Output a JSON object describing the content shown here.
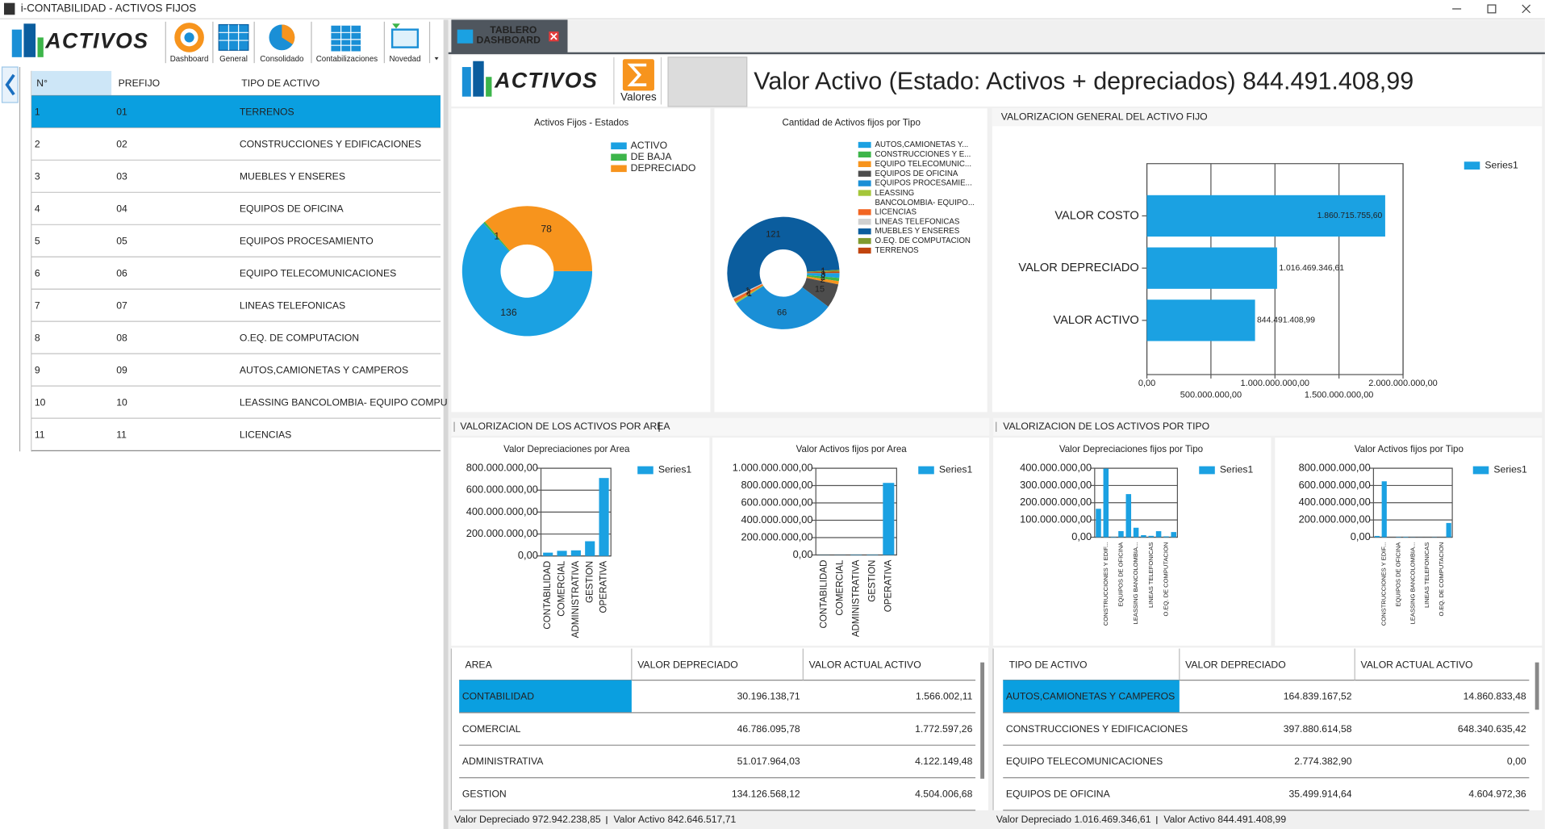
{
  "window": {
    "title": "i-CONTABILIDAD - ACTIVOS FIJOS"
  },
  "toolbar": {
    "logo": "ACTIVOS",
    "buttons": [
      "Dashboard",
      "General",
      "Consolidado",
      "Contabilizaciones",
      "Novedad"
    ]
  },
  "left_table": {
    "columns": [
      "N°",
      "PREFIJO",
      "TIPO DE ACTIVO"
    ],
    "rows": [
      [
        "1",
        "01",
        "TERRENOS"
      ],
      [
        "2",
        "02",
        "CONSTRUCCIONES Y EDIFICACIONES"
      ],
      [
        "3",
        "03",
        "MUEBLES Y ENSERES"
      ],
      [
        "4",
        "04",
        "EQUIPOS DE OFICINA"
      ],
      [
        "5",
        "05",
        "EQUIPOS PROCESAMIENTO"
      ],
      [
        "6",
        "06",
        "EQUIPO TELECOMUNICACIONES"
      ],
      [
        "7",
        "07",
        "LINEAS TELEFONICAS"
      ],
      [
        "8",
        "08",
        "O.EQ. DE COMPUTACION"
      ],
      [
        "9",
        "09",
        "AUTOS,CAMIONETAS Y CAMPEROS"
      ],
      [
        "10",
        "10",
        "LEASSING BANCOLOMBIA- EQUIPO COMPU"
      ],
      [
        "11",
        "11",
        "LICENCIAS"
      ]
    ]
  },
  "tab": {
    "label": [
      "TABLERO",
      "DASHBOARD"
    ]
  },
  "header": {
    "logo": "ACTIVOS",
    "button": "Valores",
    "title": "Valor Activo (Estado: Activos + depreciados) 844.491.408,99"
  },
  "sections": [
    "VALORIZACION DE LOS ACTIVOS POR AREA",
    "VALORIZACION DE LOS ACTIVOS POR TIPO"
  ],
  "chart_data": [
    {
      "type": "donut",
      "title": "Activos Fijos - Estados",
      "categories": [
        "ACTIVO",
        "DE BAJA",
        "DEPRECIADO"
      ],
      "values": [
        136,
        1,
        78
      ],
      "colors": [
        "#1ba1e2",
        "#3db54a",
        "#f7941d"
      ],
      "legend": "right"
    },
    {
      "type": "donut",
      "title": "Cantidad de Activos fijos por Tipo",
      "categories": [
        "AUTOS,CAMIONETAS Y...",
        "CONSTRUCCIONES Y E...",
        "EQUIPO TELECOMUNIC...",
        "EQUIPOS DE OFICINA",
        "EQUIPOS PROCESAMIE...",
        "LEASSING BANCOLOMBIA- EQUIPO...",
        "LICENCIAS",
        "LINEAS TELEFONICAS",
        "MUEBLES Y ENSERES",
        "O.EQ. DE COMPUTACION",
        "TERRENOS"
      ],
      "values": [
        3,
        2,
        2,
        15,
        66,
        1,
        2,
        1,
        121,
        1,
        1
      ],
      "colors": [
        "#1ba1e2",
        "#3db54a",
        "#f7941d",
        "#4d4d4d",
        "#1a8fd6",
        "#a4c639",
        "#f26522",
        "#d0d0d0",
        "#0b5d9e",
        "#7f9a2e",
        "#c1440e"
      ],
      "legend": "right"
    },
    {
      "type": "barh",
      "title": "VALORIZACION GENERAL DEL ACTIVO FIJO",
      "categories": [
        "VALOR COSTO",
        "VALOR DEPRECIADO",
        "VALOR ACTIVO"
      ],
      "series": [
        {
          "name": "Series1",
          "color": "#1ba1e2",
          "values": [
            1860715755.6,
            1016469346.61,
            844491408.99
          ],
          "value_labels": [
            "1.860.715.755,60",
            "1.016.469.346,61",
            "844.491.408,99"
          ]
        }
      ],
      "xlim": [
        0,
        2000000000
      ],
      "xticks": [
        {
          "value": 0,
          "label": "0,00"
        },
        {
          "value": 500000000,
          "label": "500.000.000,00"
        },
        {
          "value": 1000000000,
          "label": "1.000.000.000,00"
        },
        {
          "value": 1500000000,
          "label": "1.500.000.000,00"
        },
        {
          "value": 2000000000,
          "label": "2.000.000.000,00"
        }
      ],
      "grid": true
    },
    {
      "type": "bar",
      "title": "Valor Depreciaciones por Area",
      "categories": [
        "CONTABILIDAD",
        "COMERCIAL",
        "ADMINISTRATIVA",
        "GESTION",
        "OPERATIVA"
      ],
      "series": [
        {
          "name": "Series1",
          "color": "#1ba1e2",
          "values": [
            30196138.71,
            46786095.78,
            51017964.03,
            134126568.12,
            710815472.21
          ]
        }
      ],
      "ylim": [
        0,
        800000000
      ],
      "yticks": [
        {
          "value": 0,
          "label": "0,00"
        },
        {
          "value": 200000000,
          "label": "200.000.000,00"
        },
        {
          "value": 400000000,
          "label": "400.000.000,00"
        },
        {
          "value": 600000000,
          "label": "600.000.000,00"
        },
        {
          "value": 800000000,
          "label": "800.000.000,00"
        }
      ],
      "grid": true
    },
    {
      "type": "bar",
      "title": "Valor Activos fijos por Area",
      "categories": [
        "CONTABILIDAD",
        "COMERCIAL",
        "ADMINISTRATIVA",
        "GESTION",
        "OPERATIVA"
      ],
      "series": [
        {
          "name": "Series1",
          "color": "#1ba1e2",
          "values": [
            1566002.11,
            1772597.26,
            4122149.48,
            4504006.68,
            830681762.18
          ]
        }
      ],
      "ylim": [
        0,
        1000000000
      ],
      "yticks": [
        {
          "value": 0,
          "label": "0,00"
        },
        {
          "value": 200000000,
          "label": "200.000.000,00"
        },
        {
          "value": 400000000,
          "label": "400.000.000,00"
        },
        {
          "value": 600000000,
          "label": "600.000.000,00"
        },
        {
          "value": 800000000,
          "label": "800.000.000,00"
        },
        {
          "value": 1000000000,
          "label": "1.000.000.000,00"
        }
      ],
      "grid": true
    },
    {
      "type": "bar",
      "title": "Valor Depreciaciones fijos por Tipo",
      "categories": [
        null,
        "CONSTRUCCIONES Y EDIF...",
        null,
        "EQUIPOS DE OFICINA",
        null,
        "LEASSING BANCOLOMBIA...",
        null,
        "LINEAS TELEFONICAS",
        null,
        "O.EQ. DE COMPUTACION",
        null
      ],
      "series": [
        {
          "name": "Series1",
          "color": "#1ba1e2",
          "values": [
            164839167.52,
            397880614.58,
            2774382.9,
            35499914.64,
            250000000,
            55000000,
            12000000,
            8000000,
            35000000,
            5000000,
            30000000
          ]
        }
      ],
      "ylim": [
        0,
        400000000
      ],
      "yticks": [
        {
          "value": 0,
          "label": "0,00"
        },
        {
          "value": 100000000,
          "label": "100.000.000,00"
        },
        {
          "value": 200000000,
          "label": "200.000.000,00"
        },
        {
          "value": 300000000,
          "label": "300.000.000,00"
        },
        {
          "value": 400000000,
          "label": "400.000.000,00"
        }
      ],
      "grid": true
    },
    {
      "type": "bar",
      "title": "Valor Activos fijos por Tipo",
      "categories": [
        null,
        "CONSTRUCCIONES Y EDIF...",
        null,
        "EQUIPOS DE OFICINA",
        null,
        "LEASSING BANCOLOMBIA...",
        null,
        "LINEAS TELEFONICAS",
        null,
        "O.EQ. DE COMPUTACION",
        null
      ],
      "series": [
        {
          "name": "Series1",
          "color": "#1ba1e2",
          "values": [
            14860833.48,
            648340635.42,
            0,
            4604972.36,
            5000000,
            2000000,
            1000000,
            500000,
            2500000,
            700000,
            165000000
          ]
        }
      ],
      "ylim": [
        0,
        800000000
      ],
      "yticks": [
        {
          "value": 0,
          "label": "0,00"
        },
        {
          "value": 200000000,
          "label": "200.000.000,00"
        },
        {
          "value": 400000000,
          "label": "400.000.000,00"
        },
        {
          "value": 600000000,
          "label": "600.000.000,00"
        },
        {
          "value": 800000000,
          "label": "800.000.000,00"
        }
      ],
      "grid": true
    }
  ],
  "area_table": {
    "columns": [
      "AREA",
      "VALOR DEPRECIADO",
      "VALOR ACTUAL ACTIVO"
    ],
    "rows": [
      [
        "CONTABILIDAD",
        "30.196.138,71",
        "1.566.002,11"
      ],
      [
        "COMERCIAL",
        "46.786.095,78",
        "1.772.597,26"
      ],
      [
        "ADMINISTRATIVA",
        "51.017.964,03",
        "4.122.149,48"
      ],
      [
        "GESTION",
        "134.126.568,12",
        "4.504.006,68"
      ]
    ],
    "footer": [
      "Valor Depreciado 972.942.238,85",
      "Valor Activo 842.646.517,71"
    ]
  },
  "type_table": {
    "columns": [
      "TIPO DE ACTIVO",
      "VALOR DEPRECIADO",
      "VALOR ACTUAL ACTIVO"
    ],
    "rows": [
      [
        "AUTOS,CAMIONETAS Y CAMPEROS",
        "164.839.167,52",
        "14.860.833,48"
      ],
      [
        "CONSTRUCCIONES Y EDIFICACIONES",
        "397.880.614,58",
        "648.340.635,42"
      ],
      [
        "EQUIPO TELECOMUNICACIONES",
        "2.774.382,90",
        "0,00"
      ],
      [
        "EQUIPOS DE OFICINA",
        "35.499.914,64",
        "4.604.972,36"
      ]
    ],
    "footer": [
      "Valor Depreciado 1.016.469.346,61",
      "Valor Activo 844.491.408,99"
    ]
  }
}
